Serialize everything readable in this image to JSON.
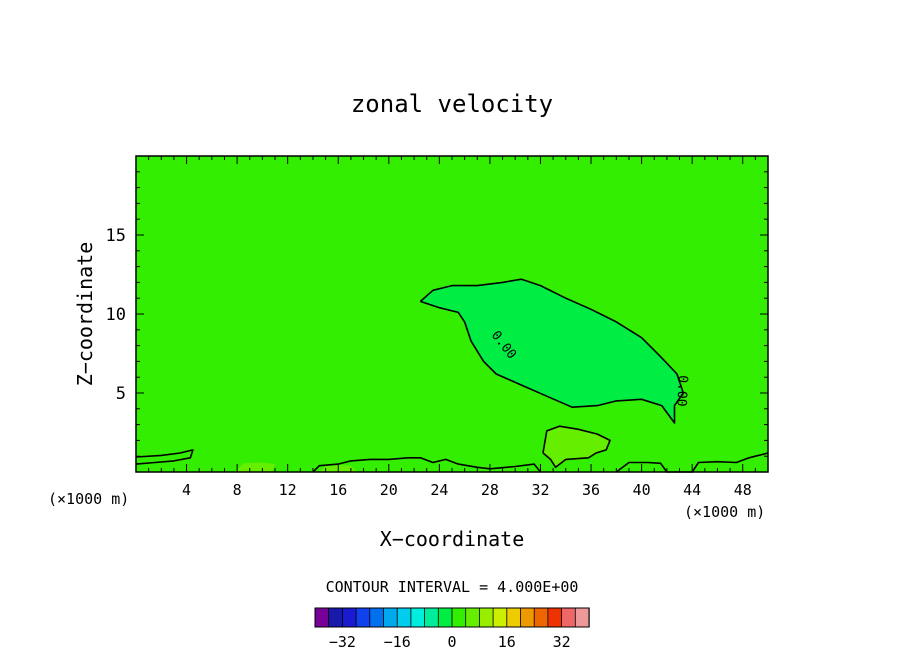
{
  "chart_data": {
    "type": "contour",
    "title": "zonal velocity",
    "xlabel": "X−coordinate",
    "ylabel": "Z−coordinate",
    "x_unit_left": "(×1000 m)",
    "x_unit_right": "(×1000 m)",
    "xlim": [
      0,
      50
    ],
    "ylim": [
      0,
      20
    ],
    "x_ticks": [
      4,
      8,
      12,
      16,
      20,
      24,
      28,
      32,
      36,
      40,
      44,
      48
    ],
    "y_ticks": [
      5,
      10,
      15
    ],
    "contour_interval_text": "CONTOUR INTERVAL = 4.000E+00",
    "contour_label": "0.00",
    "background_color": "#33ee00",
    "regions": [
      {
        "name": "negative-core",
        "color": "#00ee44",
        "points": [
          [
            22.5,
            10.8
          ],
          [
            23.5,
            11.5
          ],
          [
            25,
            11.8
          ],
          [
            27,
            11.8
          ],
          [
            29,
            12
          ],
          [
            30.5,
            12.2
          ],
          [
            32,
            11.8
          ],
          [
            34,
            11
          ],
          [
            36,
            10.3
          ],
          [
            38,
            9.5
          ],
          [
            40,
            8.5
          ],
          [
            41.5,
            7.3
          ],
          [
            42.8,
            6.2
          ],
          [
            43.3,
            5
          ],
          [
            42.6,
            4.2
          ],
          [
            42.6,
            3.1
          ],
          [
            41.6,
            4.2
          ],
          [
            40,
            4.6
          ],
          [
            38,
            4.5
          ],
          [
            36.5,
            4.2
          ],
          [
            34.5,
            4.1
          ],
          [
            32.5,
            4.8
          ],
          [
            30.5,
            5.5
          ],
          [
            28.5,
            6.2
          ],
          [
            27.5,
            7
          ],
          [
            26.5,
            8.3
          ],
          [
            26,
            9.5
          ],
          [
            25.5,
            10.1
          ],
          [
            24,
            10.4
          ]
        ]
      },
      {
        "name": "positive-blob",
        "color": "#66ee00",
        "points": [
          [
            32.2,
            1.2
          ],
          [
            32.5,
            2.6
          ],
          [
            33.5,
            2.9
          ],
          [
            35,
            2.7
          ],
          [
            36.5,
            2.4
          ],
          [
            37.5,
            2.0
          ],
          [
            37.2,
            1.4
          ],
          [
            36.4,
            1.2
          ],
          [
            35.8,
            0.9
          ],
          [
            34,
            0.8
          ],
          [
            33.2,
            0.3
          ],
          [
            32.8,
            0.8
          ]
        ]
      },
      {
        "name": "surface-patch",
        "color": "#66ee00",
        "points": [
          [
            7.8,
            0
          ],
          [
            8.5,
            0.55
          ],
          [
            10,
            0.6
          ],
          [
            11,
            0.5
          ],
          [
            10.8,
            0
          ]
        ]
      },
      {
        "name": "surface-patch-2",
        "color": "#66ee00",
        "points": [
          [
            14.5,
            0
          ],
          [
            15,
            0.35
          ],
          [
            16,
            0.45
          ],
          [
            17,
            0.4
          ],
          [
            17.5,
            0
          ]
        ]
      }
    ],
    "contour_lines": [
      {
        "name": "zero-contour-main",
        "points": [
          [
            22.5,
            10.8
          ],
          [
            23.5,
            11.5
          ],
          [
            25,
            11.8
          ],
          [
            27,
            11.8
          ],
          [
            29,
            12
          ],
          [
            30.5,
            12.2
          ],
          [
            32,
            11.8
          ],
          [
            34,
            11
          ],
          [
            36,
            10.3
          ],
          [
            38,
            9.5
          ],
          [
            40,
            8.5
          ],
          [
            41.5,
            7.3
          ],
          [
            42.8,
            6.2
          ],
          [
            43.3,
            5
          ],
          [
            42.6,
            4.2
          ],
          [
            42.6,
            3.1
          ],
          [
            41.6,
            4.2
          ],
          [
            40,
            4.6
          ],
          [
            38,
            4.5
          ],
          [
            36.5,
            4.2
          ],
          [
            34.5,
            4.1
          ],
          [
            32.5,
            4.8
          ],
          [
            30.5,
            5.5
          ],
          [
            28.5,
            6.2
          ],
          [
            27.5,
            7
          ],
          [
            26.5,
            8.3
          ],
          [
            26,
            9.5
          ],
          [
            25.5,
            10.1
          ],
          [
            24,
            10.4
          ],
          [
            22.5,
            10.8
          ]
        ]
      },
      {
        "name": "zero-contour-surface",
        "points": [
          [
            0,
            0.95
          ],
          [
            2,
            1.05
          ],
          [
            3.5,
            1.2
          ],
          [
            4.5,
            1.4
          ],
          [
            4.3,
            0.9
          ],
          [
            3,
            0.7
          ],
          [
            1.5,
            0.6
          ],
          [
            0,
            0.5
          ]
        ]
      },
      {
        "name": "zero-contour-blob",
        "points": [
          [
            32.2,
            1.2
          ],
          [
            32.5,
            2.6
          ],
          [
            33.5,
            2.9
          ],
          [
            35,
            2.7
          ],
          [
            36.5,
            2.4
          ],
          [
            37.5,
            2.0
          ],
          [
            37.2,
            1.4
          ],
          [
            36.4,
            1.2
          ],
          [
            35.8,
            0.9
          ],
          [
            34,
            0.8
          ],
          [
            33.2,
            0.3
          ],
          [
            32.8,
            0.8
          ],
          [
            32.2,
            1.2
          ]
        ]
      },
      {
        "name": "zero-contour-ground",
        "points": [
          [
            14,
            0
          ],
          [
            14.5,
            0.4
          ],
          [
            16,
            0.5
          ],
          [
            17,
            0.7
          ],
          [
            18.5,
            0.8
          ],
          [
            20,
            0.8
          ],
          [
            21.5,
            0.9
          ],
          [
            22.5,
            0.9
          ],
          [
            23.5,
            0.6
          ],
          [
            24.5,
            0.8
          ],
          [
            25.5,
            0.5
          ],
          [
            27,
            0.3
          ],
          [
            28,
            0.2
          ],
          [
            30,
            0.35
          ],
          [
            31.5,
            0.5
          ],
          [
            32,
            0
          ]
        ]
      },
      {
        "name": "zero-contour-right",
        "points": [
          [
            38,
            0
          ],
          [
            39,
            0.6
          ],
          [
            40.5,
            0.6
          ],
          [
            41.5,
            0.55
          ],
          [
            42,
            0
          ],
          [
            44,
            0
          ],
          [
            44.5,
            0.6
          ],
          [
            46,
            0.65
          ],
          [
            47.5,
            0.6
          ],
          [
            48.5,
            0.9
          ],
          [
            49,
            1.0
          ],
          [
            50,
            1.2
          ]
        ]
      }
    ],
    "colorbar": {
      "colors": [
        "#770099",
        "#1a1aaa",
        "#1a1ad0",
        "#1140ee",
        "#0070ee",
        "#00a8ee",
        "#00ccee",
        "#00eedd",
        "#00ee99",
        "#00ee44",
        "#33ee00",
        "#66ee00",
        "#99ee00",
        "#ccee00",
        "#eecc00",
        "#ee9900",
        "#ee6600",
        "#ee3300",
        "#ee6666",
        "#ee9999"
      ],
      "tick_labels": [
        "−32",
        "−16",
        "0",
        "16",
        "32"
      ],
      "tick_values": [
        -32,
        -16,
        0,
        16,
        32
      ],
      "vmin": -40,
      "vmax": 40
    }
  }
}
